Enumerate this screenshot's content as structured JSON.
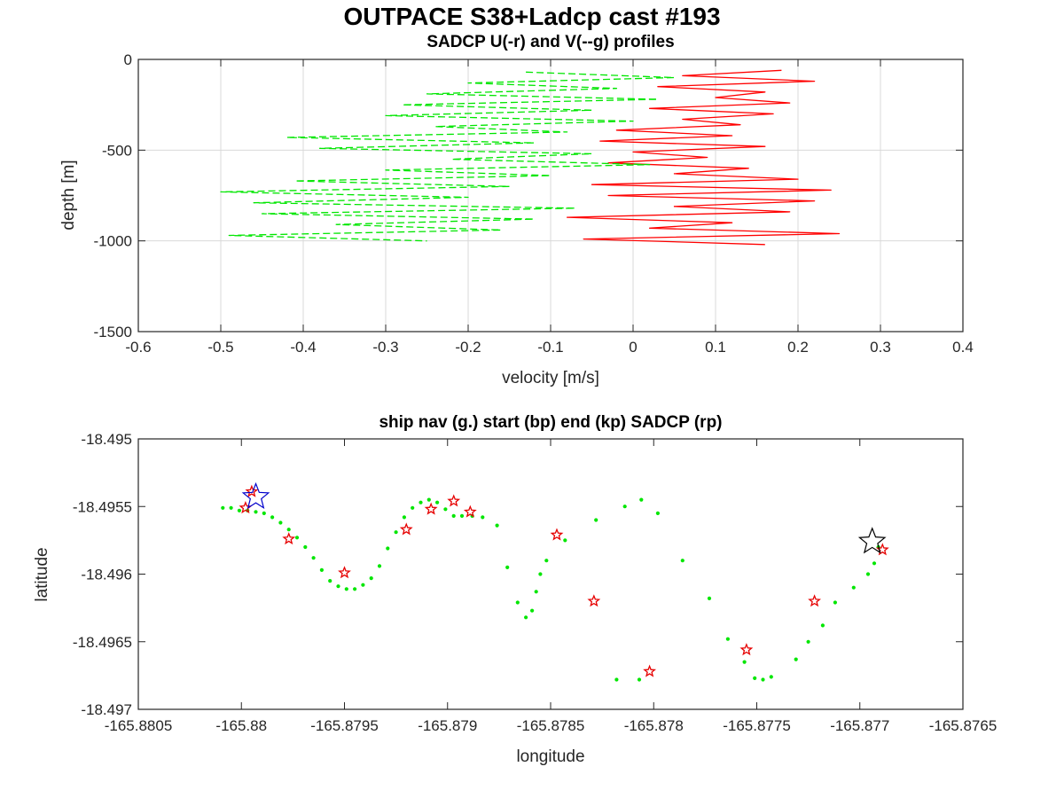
{
  "figure": {
    "title": "OUTPACE S38+Ladcp cast #193"
  },
  "colors": {
    "u_profile": "#ff0000",
    "v_profile": "#00e600",
    "ship_nav": "#00e600",
    "sadcp_points": "#e60000",
    "start_marker": "#0000cc",
    "end_marker": "#000000",
    "grid": "#d9d9d9",
    "axes": "#262626"
  },
  "chart_data": [
    {
      "type": "line",
      "title": "SADCP U(-r) and V(--g) profiles",
      "xlabel": "velocity [m/s]",
      "ylabel": "depth [m]",
      "xlim": [
        -0.6,
        0.4
      ],
      "ylim": [
        -1500,
        0
      ],
      "xticks": [
        -0.6,
        -0.5,
        -0.4,
        -0.3,
        -0.2,
        -0.1,
        0,
        0.1,
        0.2,
        0.3,
        0.4
      ],
      "xtick_labels": [
        "-0.6",
        "-0.5",
        "-0.4",
        "-0.3",
        "-0.2",
        "-0.1",
        "0",
        "0.1",
        "0.2",
        "0.3",
        "0.4"
      ],
      "yticks": [
        0,
        -500,
        -1000,
        -1500
      ],
      "ytick_labels": [
        "0",
        "-500",
        "-1000",
        "-1500"
      ],
      "grid": true,
      "series": [
        {
          "name": "U",
          "style": "solid",
          "color": "#ff0000",
          "depth": [
            -60,
            -90,
            -120,
            -150,
            -180,
            -210,
            -240,
            -270,
            -300,
            -330,
            -360,
            -390,
            -420,
            -450,
            -480,
            -510,
            -540,
            -570,
            -600,
            -630,
            -660,
            -690,
            -720,
            -750,
            -780,
            -810,
            -840,
            -870,
            -900,
            -930,
            -960,
            -990,
            -1020
          ],
          "values": [
            0.18,
            0.06,
            0.22,
            0.03,
            0.16,
            0.1,
            0.19,
            0.02,
            0.17,
            0.06,
            0.13,
            -0.02,
            0.12,
            -0.04,
            0.16,
            0.0,
            0.09,
            -0.03,
            0.14,
            0.05,
            0.2,
            -0.05,
            0.24,
            -0.03,
            0.22,
            0.05,
            0.19,
            -0.08,
            0.12,
            0.02,
            0.25,
            -0.06,
            0.16
          ]
        },
        {
          "name": "V",
          "style": "dashed",
          "color": "#00e600",
          "depth": [
            -70,
            -100,
            -130,
            -160,
            -190,
            -220,
            -250,
            -280,
            -310,
            -340,
            -370,
            -400,
            -430,
            -460,
            -490,
            -520,
            -550,
            -580,
            -610,
            -640,
            -670,
            -700,
            -730,
            -760,
            -790,
            -820,
            -850,
            -880,
            -910,
            -940,
            -970,
            -1000
          ],
          "values": [
            -0.13,
            0.05,
            -0.2,
            -0.02,
            -0.25,
            0.03,
            -0.28,
            -0.05,
            -0.3,
            0.0,
            -0.24,
            -0.08,
            -0.42,
            -0.12,
            -0.38,
            -0.05,
            -0.22,
            0.02,
            -0.3,
            -0.1,
            -0.41,
            -0.15,
            -0.5,
            -0.2,
            -0.46,
            -0.07,
            -0.45,
            -0.12,
            -0.36,
            -0.16,
            -0.49,
            -0.25
          ]
        }
      ]
    },
    {
      "type": "scatter",
      "title": "ship nav (g.) start (bp) end (kp) SADCP (rp)",
      "xlabel": "longitude",
      "ylabel": "latitude",
      "xlim": [
        -165.8805,
        -165.8765
      ],
      "ylim": [
        -18.497,
        -18.495
      ],
      "xticks": [
        -165.8805,
        -165.88,
        -165.8795,
        -165.879,
        -165.8785,
        -165.878,
        -165.8775,
        -165.877,
        -165.8765
      ],
      "xtick_labels": [
        "-165.8805",
        "-165.88",
        "-165.8795",
        "-165.879",
        "-165.8785",
        "-165.878",
        "-165.8775",
        "-165.877",
        "-165.8765"
      ],
      "yticks": [
        -18.495,
        -18.4955,
        -18.496,
        -18.4965,
        -18.497
      ],
      "ytick_labels": [
        "-18.495",
        "-18.4955",
        "-18.496",
        "-18.4965",
        "-18.497"
      ],
      "grid": false,
      "series": [
        {
          "name": "ship nav",
          "marker": "dot",
          "color": "#00e600",
          "x": [
            -165.88009,
            -165.88005,
            -165.88001,
            -165.87997,
            -165.87993,
            -165.87989,
            -165.87985,
            -165.87981,
            -165.87977,
            -165.87973,
            -165.87969,
            -165.87965,
            -165.87961,
            -165.87957,
            -165.87953,
            -165.87949,
            -165.87945,
            -165.87941,
            -165.87937,
            -165.87933,
            -165.87929,
            -165.87925,
            -165.87921,
            -165.87917,
            -165.87913,
            -165.87909,
            -165.87905,
            -165.87901,
            -165.87897,
            -165.87893,
            -165.87888,
            -165.87883,
            -165.87876,
            -165.87871,
            -165.87866,
            -165.87862,
            -165.87859,
            -165.87857,
            -165.87855,
            -165.87852,
            -165.87843,
            -165.87828,
            -165.87814,
            -165.87806,
            -165.87798,
            -165.87786,
            -165.87773,
            -165.87764,
            -165.87756,
            -165.87751,
            -165.87747,
            -165.87743,
            -165.87731,
            -165.87725,
            -165.87718,
            -165.87712,
            -165.87703,
            -165.87696,
            -165.87693,
            -165.87691,
            -165.87807,
            -165.87818
          ],
          "y": [
            -18.49551,
            -18.49551,
            -18.49553,
            -18.49553,
            -18.49554,
            -18.49555,
            -18.49558,
            -18.49562,
            -18.49567,
            -18.49573,
            -18.4958,
            -18.49588,
            -18.49597,
            -18.49605,
            -18.49609,
            -18.49611,
            -18.49611,
            -18.49608,
            -18.49603,
            -18.49594,
            -18.49581,
            -18.49569,
            -18.49558,
            -18.49551,
            -18.49547,
            -18.49545,
            -18.49547,
            -18.49552,
            -18.49557,
            -18.49557,
            -18.49557,
            -18.49558,
            -18.49564,
            -18.49595,
            -18.49621,
            -18.49632,
            -18.49627,
            -18.49613,
            -18.496,
            -18.4959,
            -18.49575,
            -18.4956,
            -18.4955,
            -18.49545,
            -18.49555,
            -18.4959,
            -18.49618,
            -18.49648,
            -18.49665,
            -18.49677,
            -18.49678,
            -18.49676,
            -18.49663,
            -18.4965,
            -18.49638,
            -18.49621,
            -18.4961,
            -18.496,
            -18.49592,
            -18.4958,
            -18.49678,
            -18.49678
          ]
        },
        {
          "name": "SADCP",
          "marker": "star",
          "color": "#e60000",
          "x": [
            -165.87995,
            -165.87998,
            -165.87977,
            -165.8795,
            -165.8792,
            -165.87908,
            -165.87897,
            -165.87889,
            -165.87847,
            -165.87829,
            -165.87802,
            -165.87755,
            -165.87722,
            -165.87689
          ],
          "y": [
            -18.49539,
            -18.49551,
            -18.49574,
            -18.49599,
            -18.49567,
            -18.49552,
            -18.49546,
            -18.49554,
            -18.49571,
            -18.4962,
            -18.49672,
            -18.49656,
            -18.4962,
            -18.49582
          ]
        },
        {
          "name": "start",
          "marker": "star-large",
          "color": "#0000cc",
          "x": [
            -165.87993
          ],
          "y": [
            -18.49543
          ]
        },
        {
          "name": "end",
          "marker": "star-large",
          "color": "#000000",
          "x": [
            -165.87694
          ],
          "y": [
            -18.49576
          ]
        }
      ]
    }
  ]
}
